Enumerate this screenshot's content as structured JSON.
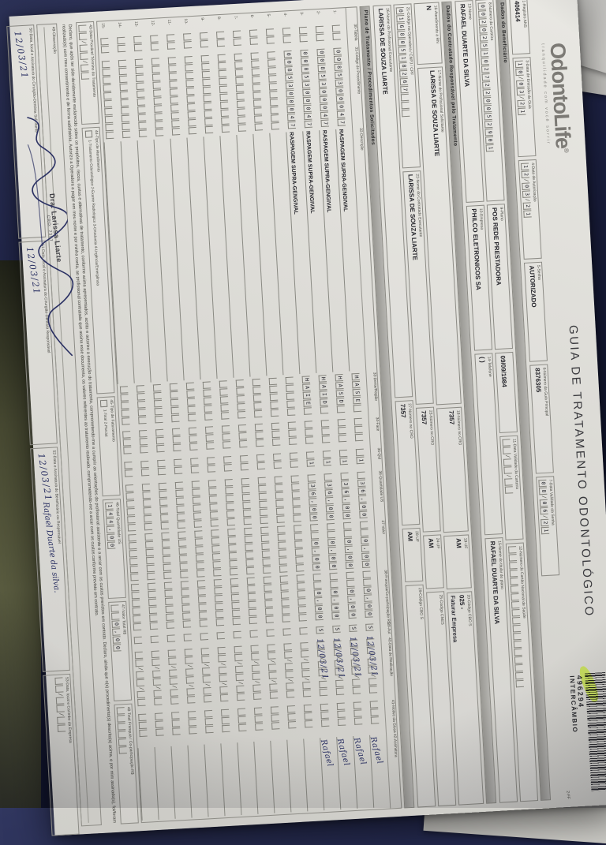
{
  "header": {
    "logo_text": "OdontoLife",
    "logo_reg": "®",
    "logo_tagline": "tranquilidade com você sorrir",
    "registro": {
      "label": "1-Registro ANS",
      "value": "406414"
    },
    "title": "GUIA DE TRATAMENTO ODONTOLÓGICO",
    "form_code": "2-FF",
    "barcode_number": "496294",
    "barcode_label": "INTERCÂMBIO"
  },
  "authorization": {
    "emissao": {
      "label": "3-Data de Emissão da Guia",
      "value": "10/03/21"
    },
    "autorizacao": {
      "label": "4-Data de Autorização",
      "value": "12/03/21"
    },
    "senha": {
      "label": "5-Senha",
      "value": "AUTORIZADO"
    },
    "guia_principal": {
      "label": "6-Número da Guia Principal",
      "value": "8376305"
    },
    "validade_senha": {
      "label": "7-Data Validade da Senha",
      "value": "08/06/21"
    }
  },
  "sections": {
    "beneficiario": "Dados do Beneficiário",
    "contratado": "Dados do Contratado Responsável pelo Tratamento",
    "plano_tratamento": "Plano de Tratamento / Procedimentos Solicitados"
  },
  "beneficiario": {
    "carteira": {
      "label": "8-Número da Carteira",
      "value": "0020251027220052901"
    },
    "plano": {
      "label": "9-Plano",
      "value": "POS REDE PRESTADORA"
    },
    "nascimento": {
      "label": "",
      "value": "09/09/1984"
    },
    "validade_carteira": {
      "label": "11-Data Validade da Carteira",
      "value": "  /  /  "
    },
    "cns": {
      "label": "12-Número do Cartão Nacional de Saúde",
      "value": ""
    },
    "nome": {
      "label": "13-Nome",
      "value": "RAFAEL DUARTE DA SILVA"
    },
    "empresa": {
      "label": "10-Empresa",
      "value": "PHILCO ELETRONICOS SA"
    },
    "telefone": {
      "label": "14-Telefone",
      "value": "(      )"
    },
    "titular": {
      "label": "15-Nome do titular do plano",
      "value": "RAFAEL DUARTE DA SILVA"
    }
  },
  "contratado": {
    "rn": {
      "label": "16-Atendimento a RN",
      "value": "N"
    },
    "solicitante": {
      "label": "17-Nome do Profissional Solicitante",
      "value": "LARISSA DE SOUZA LIARTE"
    },
    "cro_solicitante": {
      "label": "18-Número no CRO",
      "value": "7357"
    },
    "uf_solicitante": {
      "label": "19-UF",
      "value": "AM"
    },
    "cbo_solicitante": {
      "label": "20-Código CBO S",
      "value": "025 -",
      "stamp": "Faturar Empresa"
    },
    "codigo_operadora": {
      "label": "21-Código na Operadora / CNPJ / CPF",
      "value": "01680518267"
    },
    "executante": {
      "label": "22-Nome do Contratado Executante",
      "value": "LARISSA DE SOUZA LIARTE"
    },
    "cro_executante": {
      "label": "23-Número no CRO",
      "value": "7357"
    },
    "uf_executante": {
      "label": "24-UF",
      "value": "AM"
    },
    "cnes": {
      "label": "25-Código CNES",
      "value": ""
    },
    "prof_executante": {
      "label": "26-Nome do Profissional Executante",
      "value": "LARISSA DE SOUZA LIARTE"
    },
    "cro_prof": {
      "label": "27-Número no CRO",
      "value": "7357"
    },
    "uf_prof": {
      "label": "28-UF",
      "value": "AM"
    },
    "cbo_prof": {
      "label": "29-Código CBO S",
      "value": ""
    }
  },
  "procedures": {
    "columns": [
      "",
      "30-Tabela",
      "31-Código do Procedimento",
      "32-Descrição",
      "33-Dente/Região",
      "34-Face",
      "35-Qtd",
      "36-Quantidade US",
      "37-Valor",
      "38-Franquia/Co-participação R$",
      "39-Aut",
      "40-Data de Realização",
      "41-Motivo da Glosa",
      "42-Assinatura"
    ],
    "rows": [
      {
        "n": "1-",
        "tabela": "",
        "codigo": "0085300047",
        "descricao": "RASPAGEM SUPRA-GENGIVAL",
        "dente": "HASE",
        "face": "",
        "qtd": " 1",
        "qtd_us": " 36,00",
        "valor": "  0,00",
        "franquia": "  0,00",
        "aut": "S",
        "data": "  /  /  ",
        "glosa": "",
        "assin": "",
        "hand_date": "12/03/21",
        "hand_sig": "Rafael"
      },
      {
        "n": "2-",
        "tabela": "",
        "codigo": "0085300047",
        "descricao": "RASPAGEM SUPRA-GENGIVAL",
        "dente": "HASD",
        "face": "",
        "qtd": " 1",
        "qtd_us": " 36,00",
        "valor": "  0,00",
        "franquia": "  0,00",
        "aut": "S",
        "data": "  /  /  ",
        "glosa": "",
        "assin": "",
        "hand_date": "12/03/21",
        "hand_sig": "Rafael"
      },
      {
        "n": "3-",
        "tabela": "",
        "codigo": "0085300047",
        "descricao": "RASPAGEM SUPRA-GENGIVAL",
        "dente": "HAID",
        "face": "",
        "qtd": " 1",
        "qtd_us": " 36,00",
        "valor": "  0,00",
        "franquia": "  0,00",
        "aut": "S",
        "data": "  /  /  ",
        "glosa": "",
        "assin": "",
        "hand_date": "12/03/21",
        "hand_sig": "Rafael"
      },
      {
        "n": "4-",
        "tabela": "",
        "codigo": "0085300047",
        "descricao": "RASPAGEM SUPRA-GENGIVAL",
        "dente": "HAIE",
        "face": "",
        "qtd": " 1",
        "qtd_us": " 36,00",
        "valor": "  0,00",
        "franquia": "  0,00",
        "aut": "S",
        "data": "  /  /  ",
        "glosa": "",
        "assin": "",
        "hand_date": "12/03/21",
        "hand_sig": "Rafael"
      },
      {
        "n": "5-",
        "tabela": "",
        "codigo": "",
        "descricao": "",
        "dente": "",
        "face": "",
        "qtd": "",
        "qtd_us": "",
        "valor": "",
        "franquia": "",
        "aut": "",
        "data": "  /  /  ",
        "glosa": "",
        "assin": ""
      },
      {
        "n": "6-",
        "tabela": "",
        "codigo": "",
        "descricao": "",
        "dente": "",
        "face": "",
        "qtd": "",
        "qtd_us": "",
        "valor": "",
        "franquia": "",
        "aut": "",
        "data": "  /  /  ",
        "glosa": "",
        "assin": ""
      },
      {
        "n": "7-",
        "tabela": "",
        "codigo": "",
        "descricao": "",
        "dente": "",
        "face": "",
        "qtd": "",
        "qtd_us": "",
        "valor": "",
        "franquia": "",
        "aut": "",
        "data": "  /  /  ",
        "glosa": "",
        "assin": ""
      },
      {
        "n": "8-",
        "tabela": "",
        "codigo": "",
        "descricao": "",
        "dente": "",
        "face": "",
        "qtd": "",
        "qtd_us": "",
        "valor": "",
        "franquia": "",
        "aut": "",
        "data": "  /  /  ",
        "glosa": "",
        "assin": ""
      },
      {
        "n": "9-",
        "tabela": "",
        "codigo": "",
        "descricao": "",
        "dente": "",
        "face": "",
        "qtd": "",
        "qtd_us": "",
        "valor": "",
        "franquia": "",
        "aut": "",
        "data": "  /  /  ",
        "glosa": "",
        "assin": ""
      },
      {
        "n": "10-",
        "tabela": "",
        "codigo": "",
        "descricao": "",
        "dente": "",
        "face": "",
        "qtd": "",
        "qtd_us": "",
        "valor": "",
        "franquia": "",
        "aut": "",
        "data": "  /  /  ",
        "glosa": "",
        "assin": ""
      },
      {
        "n": "11-",
        "tabela": "",
        "codigo": "",
        "descricao": "",
        "dente": "",
        "face": "",
        "qtd": "",
        "qtd_us": "",
        "valor": "",
        "franquia": "",
        "aut": "",
        "data": "  /  /  ",
        "glosa": "",
        "assin": ""
      },
      {
        "n": "12-",
        "tabela": "",
        "codigo": "",
        "descricao": "",
        "dente": "",
        "face": "",
        "qtd": "",
        "qtd_us": "",
        "valor": "",
        "franquia": "",
        "aut": "",
        "data": "  /  /  ",
        "glosa": "",
        "assin": ""
      },
      {
        "n": "13-",
        "tabela": "",
        "codigo": "",
        "descricao": "",
        "dente": "",
        "face": "",
        "qtd": "",
        "qtd_us": "",
        "valor": "",
        "franquia": "",
        "aut": "",
        "data": "  /  /  ",
        "glosa": "",
        "assin": ""
      },
      {
        "n": "14-",
        "tabela": "",
        "codigo": "",
        "descricao": "",
        "dente": "",
        "face": "",
        "qtd": "",
        "qtd_us": "",
        "valor": "",
        "franquia": "",
        "aut": "",
        "data": "  /  /  ",
        "glosa": "",
        "assin": ""
      },
      {
        "n": "15-",
        "tabela": "",
        "codigo": "",
        "descricao": "",
        "dente": "",
        "face": "",
        "qtd": "",
        "qtd_us": "",
        "valor": "",
        "franquia": "",
        "aut": "",
        "data": "  /  /  ",
        "glosa": "",
        "assin": ""
      }
    ]
  },
  "totals": {
    "termino": {
      "label": "43-Data Provável Término do Tratamento",
      "value": "  /  /  "
    },
    "atendimento": {
      "label": "44-Tipo de Atendimento",
      "value": "",
      "options": "1-Tratamento Odontológico   2-Exame Radiológico   3-Ortodontia   4-Urgência/Emergência"
    },
    "faturamento": {
      "label": "45-Tipo de Faturamento",
      "value": "",
      "options": "1-Total   2-Parcial"
    },
    "total_us": {
      "label": "46-Total Quantidade US",
      "value": "144,00"
    },
    "valor_total": {
      "label": "47-Valor Total R$",
      "value": "  0,00"
    },
    "total_franquia": {
      "label": "48-Total Franquia / Co-participação R$",
      "value": ""
    }
  },
  "declaration": "Declaro, que após ter sido devidamente esclarecido sobre os propósitos, riscos, custos e alternativas de tratamento, conforme acima apresentados, aceito e autorizo a execução do tratamento, comprometendo-me a cumprir as orientações do profissional assistente e a arcar com os custos previstos em contrato. Declaro, ainda que o(s) procedimento(s) descrito(s) acima, e por mim assinado(s), foi/foram realizado(s) com meu consentimento e de forma satisfatória. Autorizo a Operadora a pagar em meu nome e por minha conta, ao profissional contratado que assina esse documento, os valores referentes ao tratamento realizado, comprometendo-me a arcar com os custos conforme previsto em contrato.",
  "observacao": {
    "label": "49-Observação"
  },
  "signatures": {
    "solicitante": {
      "label": "50-Data, local e Assinatura do Cirurgião-Dentista Solicitante",
      "hand_date": "12/03/21"
    },
    "responsavel": {
      "label": "51-Data, local e Assinatura do Cirurgião-Dentista Responsável",
      "hand_date": "12/03/21"
    },
    "beneficiario": {
      "label": "52-Data e Assinatura do Beneficiário ou Responsável",
      "hand_date": "12/03/21",
      "hand_name": "Rafael Duarte da silva."
    },
    "empresa": {
      "label": "53-Data, local e Carimbo da Empresa",
      "value": "  /  /  "
    },
    "stamp_line1": "Dra. Larissa Liarte",
    "stamp_line2": "CRO: 7357"
  }
}
